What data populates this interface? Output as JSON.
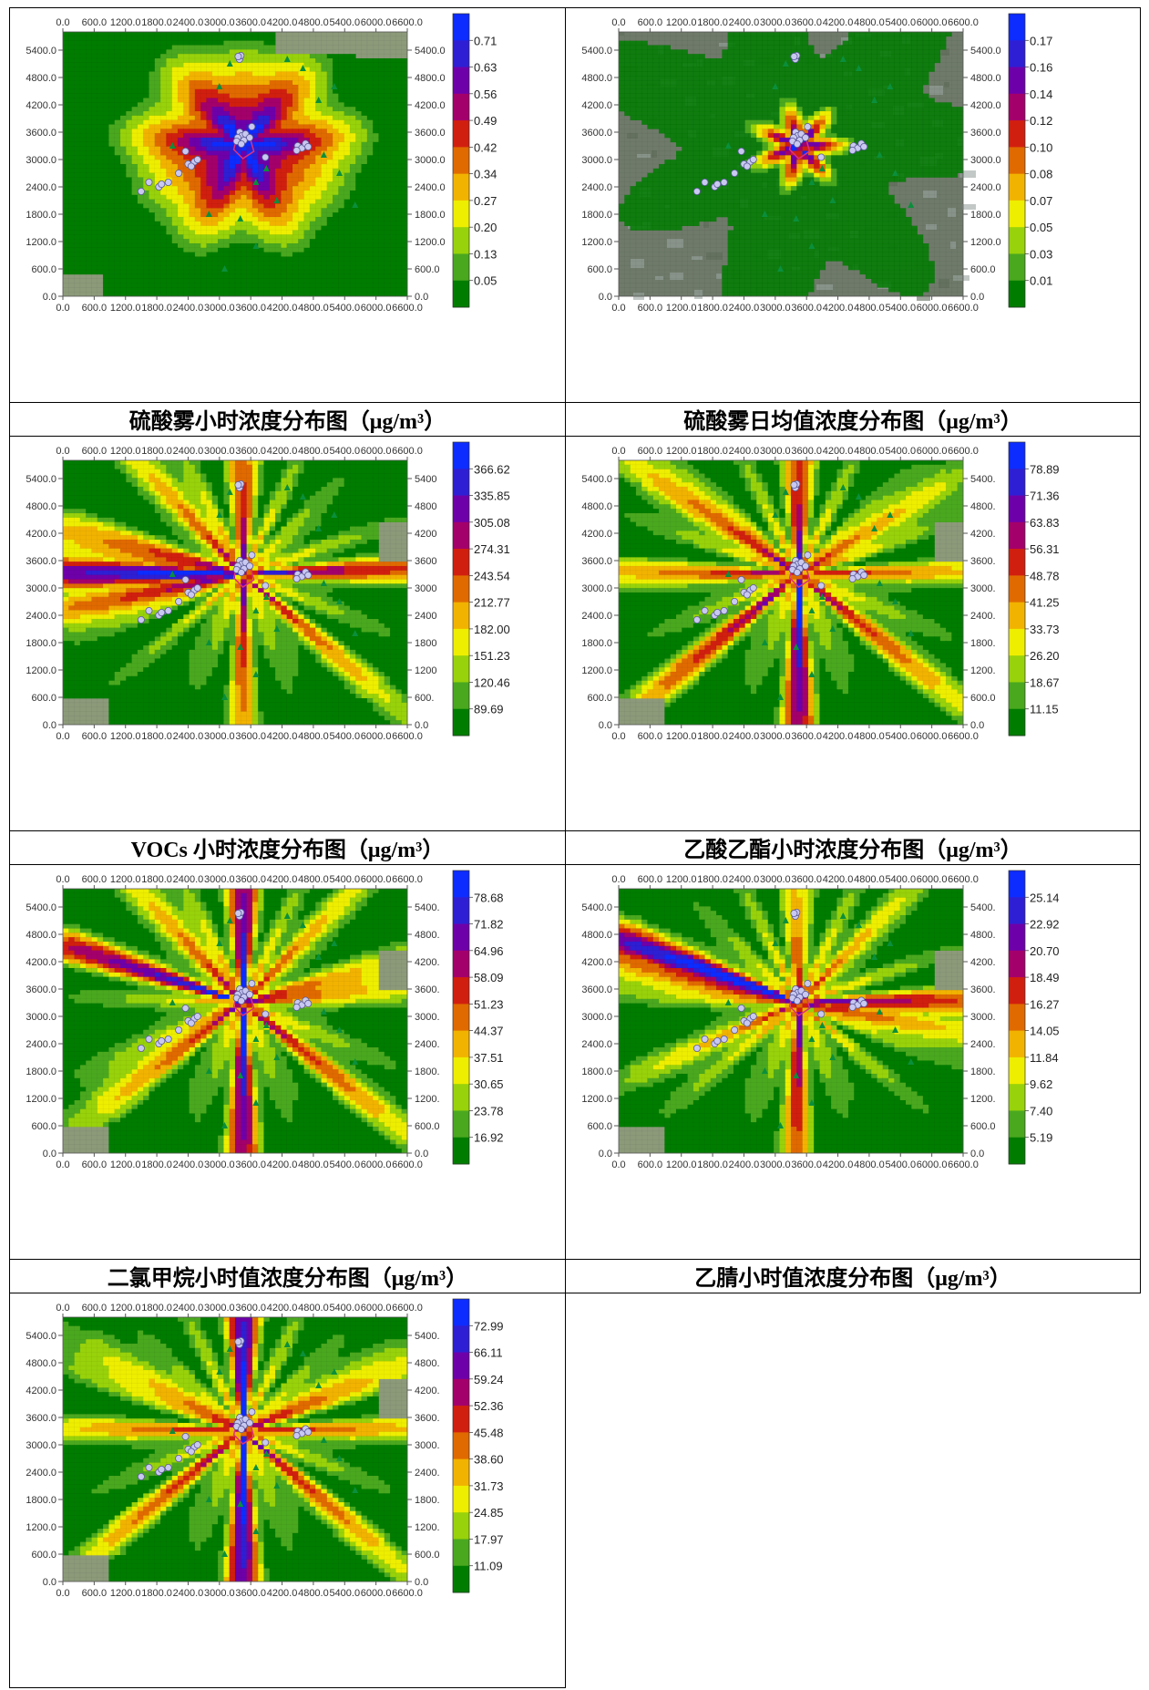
{
  "colors": {
    "band_low_to_high": [
      "#007d00",
      "#4aa81f",
      "#98d20a",
      "#eeee00",
      "#f2b300",
      "#e06a00",
      "#d11f0f",
      "#a4006b",
      "#6e00aa",
      "#2e1fd4",
      "#0d2cff"
    ],
    "receptor": "#c8c8f0",
    "source_marker": "#0a8f3c"
  },
  "x_ticks": [
    "0.0",
    "600.0",
    "1200.0",
    "1800.0",
    "2400.0",
    "3000.0",
    "3600.0",
    "4200.0",
    "4800.0",
    "5400.0",
    "6000.0",
    "6600.0"
  ],
  "y_ticks": [
    "0.0",
    "600.0",
    "1200.0",
    "1800.0",
    "2400.0",
    "3000.0",
    "3600.0",
    "4200.0",
    "4800.0",
    "5400.0"
  ],
  "chart_data": [
    {
      "type": "heatmap",
      "title": "硫酸雾小时浓度分布图（μg/m³）",
      "pollutant": "硫酸雾",
      "xlim": [
        0,
        6600
      ],
      "ylim": [
        0,
        5800
      ],
      "colorbar_labels": [
        "0.71",
        "0.63",
        "0.56",
        "0.49",
        "0.42",
        "0.34",
        "0.27",
        "0.20",
        "0.13",
        "0.05"
      ],
      "colorbar_range": [
        0.05,
        0.71
      ],
      "shape": "compact",
      "shaded_extent": "partial",
      "map_background": "natural",
      "grid": true,
      "right_tick_labels": [
        "0.0",
        "600.0",
        "1200.0",
        "1800.0",
        "2400.0",
        "3000.0",
        "3600.0",
        "4200.0",
        "4800.0",
        "5400.0"
      ]
    },
    {
      "type": "heatmap",
      "title": "硫酸雾日均值浓度分布图（μg/m³）",
      "pollutant": "硫酸雾",
      "xlim": [
        0,
        6600
      ],
      "ylim": [
        0,
        5800
      ],
      "colorbar_labels": [
        "0.17",
        "0.16",
        "0.14",
        "0.12",
        "0.10",
        "0.08",
        "0.07",
        "0.05",
        "0.03",
        "0.01"
      ],
      "colorbar_range": [
        0.01,
        0.17
      ],
      "shape": "star-small",
      "shaded_extent": "partial",
      "map_background": "satellite",
      "grid": true,
      "right_tick_labels": [
        "0.0",
        "600.0",
        "1200.0",
        "1800.0",
        "2400.0",
        "3000.0",
        "3600.0",
        "4200.0",
        "4800.0",
        "5400.0"
      ]
    },
    {
      "type": "heatmap",
      "title": "VOCs 小时浓度分布图（μg/m³）",
      "pollutant": "VOCs",
      "xlim": [
        0,
        6600
      ],
      "ylim": [
        0,
        5800
      ],
      "colorbar_labels": [
        "366.62",
        "335.85",
        "305.08",
        "274.31",
        "243.54",
        "212.77",
        "182.00",
        "151.23",
        "120.46",
        "89.69"
      ],
      "colorbar_range": [
        89.69,
        366.62
      ],
      "shape": "radial-west",
      "shaded_extent": "full",
      "map_background": "natural",
      "grid": true,
      "right_tick_labels": [
        "0.0",
        "600.",
        "1200",
        "1800",
        "2400",
        "3000",
        "3600",
        "4200",
        "4800",
        "5400"
      ]
    },
    {
      "type": "heatmap",
      "title": "乙酸乙酯小时浓度分布图（μg/m³）",
      "pollutant": "乙酸乙酯",
      "xlim": [
        0,
        6600
      ],
      "ylim": [
        0,
        5800
      ],
      "colorbar_labels": [
        "78.89",
        "71.36",
        "63.83",
        "56.31",
        "48.78",
        "41.25",
        "33.73",
        "26.20",
        "18.67",
        "11.15"
      ],
      "colorbar_range": [
        11.15,
        78.89
      ],
      "shape": "radial",
      "shaded_extent": "full",
      "map_background": "natural",
      "grid": true,
      "right_tick_labels": [
        "0.0",
        "600.0",
        "1200.",
        "1800.",
        "2400.",
        "3000.",
        "3600.",
        "4200.",
        "4800.",
        "5400."
      ]
    },
    {
      "type": "heatmap",
      "title": "二氯甲烷小时值浓度分布图（μg/m³）",
      "pollutant": "二氯甲烷",
      "xlim": [
        0,
        6600
      ],
      "ylim": [
        0,
        5800
      ],
      "colorbar_labels": [
        "78.68",
        "71.82",
        "64.96",
        "58.09",
        "51.23",
        "44.37",
        "37.51",
        "30.65",
        "23.78",
        "16.92"
      ],
      "colorbar_range": [
        16.92,
        78.68
      ],
      "shape": "radial-cross",
      "shaded_extent": "full",
      "map_background": "natural",
      "grid": true,
      "right_tick_labels": [
        "0.0",
        "600.0",
        "1200.",
        "1800.",
        "2400.",
        "3000.",
        "3600.",
        "4200.",
        "4800.",
        "5400."
      ]
    },
    {
      "type": "heatmap",
      "title": "乙腈小时值浓度分布图（μg/m³）",
      "pollutant": "乙腈",
      "xlim": [
        0,
        6600
      ],
      "ylim": [
        0,
        5800
      ],
      "colorbar_labels": [
        "25.14",
        "22.92",
        "20.70",
        "18.49",
        "16.27",
        "14.05",
        "11.84",
        "9.62",
        "7.40",
        "5.19"
      ],
      "colorbar_range": [
        5.19,
        25.14
      ],
      "shape": "plume-northwest",
      "shaded_extent": "full",
      "map_background": "natural",
      "grid": true,
      "right_tick_labels": [
        "0.0",
        "600.0",
        "1200.",
        "1800.",
        "2400.",
        "3000.",
        "3600.",
        "4200.",
        "4800.",
        "5400."
      ]
    },
    {
      "type": "heatmap",
      "title": "",
      "pollutant": "",
      "xlim": [
        0,
        6600
      ],
      "ylim": [
        0,
        5800
      ],
      "colorbar_labels": [
        "72.99",
        "66.11",
        "59.24",
        "52.36",
        "45.48",
        "38.60",
        "31.73",
        "24.85",
        "17.97",
        "11.09"
      ],
      "colorbar_range": [
        11.09,
        72.99
      ],
      "shape": "plume-north",
      "shaded_extent": "full",
      "map_background": "natural",
      "grid": true,
      "right_tick_labels": [
        "0.0",
        "600.0",
        "1200.",
        "1800.",
        "2400.",
        "3000.",
        "3600.",
        "4200.",
        "4800.",
        "5400."
      ]
    }
  ],
  "receptors": [
    [
      3385,
      5200
    ],
    [
      3410,
      5280
    ],
    [
      3360,
      5260
    ],
    [
      3390,
      3600
    ],
    [
      3430,
      3520
    ],
    [
      3350,
      3480
    ],
    [
      3500,
      3560
    ],
    [
      3620,
      3720
    ],
    [
      3330,
      3400
    ],
    [
      3470,
      3420
    ],
    [
      3420,
      3340
    ],
    [
      3580,
      3480
    ],
    [
      2350,
      3180
    ],
    [
      2400,
      2900
    ],
    [
      2520,
      2950
    ],
    [
      2580,
      3000
    ],
    [
      2460,
      2850
    ],
    [
      2220,
      2700
    ],
    [
      1840,
      2400
    ],
    [
      2020,
      2500
    ],
    [
      1650,
      2500
    ],
    [
      1500,
      2300
    ],
    [
      1890,
      2460
    ],
    [
      3880,
      3050
    ],
    [
      4500,
      3300
    ],
    [
      4580,
      3250
    ],
    [
      4650,
      3350
    ],
    [
      4480,
      3200
    ],
    [
      4700,
      3280
    ]
  ],
  "sources": [
    [
      3200,
      5100
    ],
    [
      4300,
      5200
    ],
    [
      4600,
      5000
    ],
    [
      5200,
      4600
    ],
    [
      4900,
      4300
    ],
    [
      3000,
      4600
    ],
    [
      2100,
      3300
    ],
    [
      3900,
      2800
    ],
    [
      3700,
      2500
    ],
    [
      4100,
      2100
    ],
    [
      5000,
      3100
    ],
    [
      5300,
      2700
    ],
    [
      3400,
      1700
    ],
    [
      3700,
      1100
    ],
    [
      3100,
      600
    ],
    [
      5600,
      2000
    ],
    [
      2800,
      1800
    ]
  ]
}
